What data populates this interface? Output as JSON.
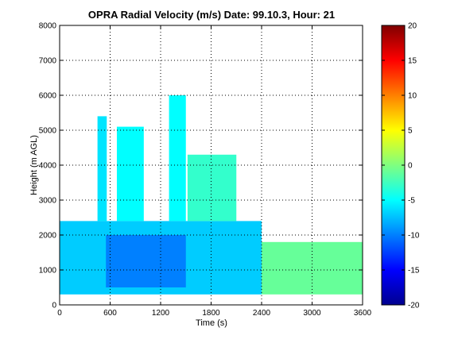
{
  "chart_data": {
    "type": "heatmap",
    "title": "OPRA Radial Velocity (m/s)  Date: 99.10.3, Hour: 21",
    "xlabel": "Time (s)",
    "ylabel": "Height (m AGL)",
    "xlim": [
      0,
      3600
    ],
    "ylim": [
      0,
      8000
    ],
    "x_ticks": [
      0,
      600,
      1200,
      1800,
      2400,
      3000,
      3600
    ],
    "y_ticks": [
      0,
      1000,
      2000,
      3000,
      4000,
      5000,
      6000,
      7000,
      8000
    ],
    "grid": true,
    "colorbar": {
      "range": [
        -20,
        20
      ],
      "ticks": [
        20,
        15,
        10,
        5,
        0,
        -5,
        -10,
        -15,
        -20
      ],
      "colormap": "jet"
    },
    "regions": [
      {
        "desc": "main echo layer",
        "x": [
          0,
          2400
        ],
        "y": [
          300,
          2400
        ],
        "value": -7
      },
      {
        "desc": "strong downward core",
        "x": [
          550,
          1500
        ],
        "y": [
          500,
          2000
        ],
        "value": -10
      },
      {
        "desc": "weak echo tail",
        "x": [
          2400,
          3600
        ],
        "y": [
          300,
          1800
        ],
        "value": -1
      },
      {
        "desc": "convective plume",
        "x": [
          450,
          560
        ],
        "y": [
          2400,
          5400
        ],
        "value": -6
      },
      {
        "desc": "convective plume",
        "x": [
          680,
          1000
        ],
        "y": [
          2400,
          5100
        ],
        "value": -5
      },
      {
        "desc": "convective plume",
        "x": [
          1300,
          1500
        ],
        "y": [
          2400,
          6000
        ],
        "value": -5
      },
      {
        "desc": "convective plume",
        "x": [
          1520,
          2100
        ],
        "y": [
          2400,
          4300
        ],
        "value": -3
      }
    ]
  }
}
